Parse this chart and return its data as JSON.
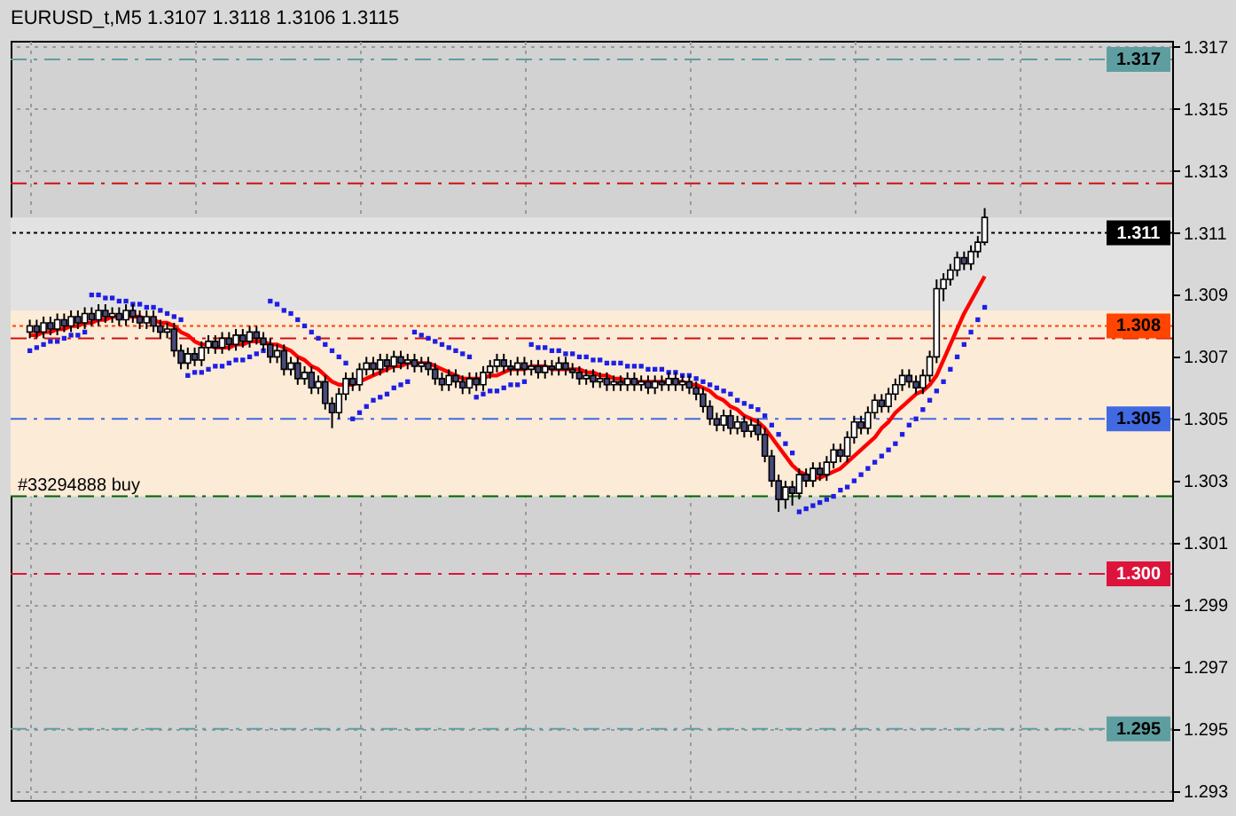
{
  "chart_data": {
    "type": "candlestick",
    "title": "EURUSD_t,M5  1.3107 1.3118 1.3106 1.3115",
    "categories": [
      null,
      null,
      null,
      null,
      null,
      null,
      null,
      null,
      null,
      null,
      null,
      null,
      null,
      null,
      null,
      null,
      null,
      null,
      null,
      null,
      null,
      null,
      null,
      null,
      null,
      null,
      null,
      null,
      null,
      null,
      null,
      null,
      null,
      null,
      null,
      null,
      null,
      null,
      null,
      null,
      null,
      null,
      null,
      null,
      null,
      null,
      null,
      null,
      null,
      null,
      null,
      null,
      null,
      null,
      null,
      null,
      null,
      null,
      null,
      null,
      null,
      null,
      null,
      null,
      null,
      null,
      null,
      null,
      null,
      null,
      null,
      null,
      null,
      null,
      null,
      null,
      null,
      null,
      null,
      null,
      null,
      null,
      null,
      null,
      null,
      null,
      null,
      null,
      null,
      null,
      null,
      null,
      null,
      null,
      null,
      null,
      null,
      null,
      null,
      null,
      null,
      null,
      null,
      null,
      null,
      null,
      null,
      null,
      null,
      null,
      null,
      null,
      null,
      null,
      null,
      null,
      null,
      null,
      null,
      null,
      null,
      null,
      null,
      null,
      null,
      null,
      null,
      null,
      null,
      null,
      null,
      null,
      null,
      null,
      null,
      null,
      null,
      null,
      null,
      null
    ],
    "ohlc": [
      [
        1.3078,
        1.3082,
        1.3076,
        1.308
      ],
      [
        1.308,
        1.3082,
        1.3076,
        1.3078
      ],
      [
        1.3078,
        1.3083,
        1.3076,
        1.3081
      ],
      [
        1.3081,
        1.3083,
        1.3077,
        1.3079
      ],
      [
        1.3079,
        1.3084,
        1.3077,
        1.3082
      ],
      [
        1.3082,
        1.3084,
        1.3078,
        1.308
      ],
      [
        1.308,
        1.3085,
        1.3078,
        1.3083
      ],
      [
        1.3083,
        1.3085,
        1.3079,
        1.3081
      ],
      [
        1.3081,
        1.3086,
        1.3079,
        1.3084
      ],
      [
        1.3084,
        1.3086,
        1.308,
        1.3082
      ],
      [
        1.3082,
        1.3087,
        1.308,
        1.3085
      ],
      [
        1.3085,
        1.3087,
        1.3081,
        1.3083
      ],
      [
        1.3083,
        1.3086,
        1.3081,
        1.3084
      ],
      [
        1.3084,
        1.3086,
        1.308,
        1.3082
      ],
      [
        1.3082,
        1.3087,
        1.308,
        1.3085
      ],
      [
        1.3085,
        1.3087,
        1.3081,
        1.3083
      ],
      [
        1.3083,
        1.3085,
        1.3079,
        1.3081
      ],
      [
        1.3081,
        1.3085,
        1.3079,
        1.3083
      ],
      [
        1.3083,
        1.3085,
        1.3078,
        1.308
      ],
      [
        1.308,
        1.3082,
        1.3076,
        1.3078
      ],
      [
        1.3078,
        1.3081,
        1.3076,
        1.3079
      ],
      [
        1.3079,
        1.3081,
        1.307,
        1.3072
      ],
      [
        1.3072,
        1.3074,
        1.3066,
        1.3068
      ],
      [
        1.3068,
        1.3073,
        1.3066,
        1.3071
      ],
      [
        1.3071,
        1.3073,
        1.3067,
        1.3069
      ],
      [
        1.3069,
        1.3075,
        1.3067,
        1.3073
      ],
      [
        1.3073,
        1.3077,
        1.3071,
        1.3075
      ],
      [
        1.3075,
        1.3077,
        1.3071,
        1.3073
      ],
      [
        1.3073,
        1.3078,
        1.3071,
        1.3076
      ],
      [
        1.3076,
        1.3078,
        1.3072,
        1.3074
      ],
      [
        1.3074,
        1.3079,
        1.3072,
        1.3077
      ],
      [
        1.3077,
        1.3079,
        1.3073,
        1.3075
      ],
      [
        1.3075,
        1.308,
        1.3073,
        1.3078
      ],
      [
        1.3078,
        1.308,
        1.3074,
        1.3076
      ],
      [
        1.3076,
        1.3078,
        1.3072,
        1.3074
      ],
      [
        1.3074,
        1.3076,
        1.3068,
        1.307
      ],
      [
        1.307,
        1.3074,
        1.3068,
        1.3072
      ],
      [
        1.3072,
        1.3074,
        1.3064,
        1.3066
      ],
      [
        1.3066,
        1.307,
        1.3064,
        1.3068
      ],
      [
        1.3068,
        1.307,
        1.3061,
        1.3063
      ],
      [
        1.3063,
        1.3067,
        1.3061,
        1.3065
      ],
      [
        1.3065,
        1.3067,
        1.3058,
        1.306
      ],
      [
        1.306,
        1.3064,
        1.3058,
        1.3062
      ],
      [
        1.3062,
        1.3064,
        1.3053,
        1.3055
      ],
      [
        1.3055,
        1.3057,
        1.3047,
        1.3052
      ],
      [
        1.3052,
        1.306,
        1.305,
        1.3058
      ],
      [
        1.3058,
        1.3065,
        1.3056,
        1.3063
      ],
      [
        1.3063,
        1.3065,
        1.3059,
        1.3061
      ],
      [
        1.3061,
        1.3068,
        1.3059,
        1.3066
      ],
      [
        1.3066,
        1.307,
        1.3064,
        1.3068
      ],
      [
        1.3068,
        1.307,
        1.3064,
        1.3066
      ],
      [
        1.3066,
        1.3071,
        1.3064,
        1.3069
      ],
      [
        1.3069,
        1.3071,
        1.3065,
        1.3067
      ],
      [
        1.3067,
        1.3072,
        1.3065,
        1.307
      ],
      [
        1.307,
        1.3072,
        1.3066,
        1.3068
      ],
      [
        1.3068,
        1.3071,
        1.3066,
        1.3069
      ],
      [
        1.3069,
        1.3071,
        1.3065,
        1.3067
      ],
      [
        1.3067,
        1.307,
        1.3065,
        1.3068
      ],
      [
        1.3068,
        1.307,
        1.3064,
        1.3066
      ],
      [
        1.3066,
        1.3068,
        1.3061,
        1.3063
      ],
      [
        1.3063,
        1.3065,
        1.3059,
        1.3061
      ],
      [
        1.3061,
        1.3066,
        1.3059,
        1.3064
      ],
      [
        1.3064,
        1.3066,
        1.306,
        1.3062
      ],
      [
        1.3062,
        1.3064,
        1.3058,
        1.306
      ],
      [
        1.306,
        1.3065,
        1.3058,
        1.3063
      ],
      [
        1.3063,
        1.3065,
        1.3059,
        1.3061
      ],
      [
        1.3061,
        1.3067,
        1.3059,
        1.3065
      ],
      [
        1.3065,
        1.3069,
        1.3063,
        1.3067
      ],
      [
        1.3067,
        1.3071,
        1.3065,
        1.3069
      ],
      [
        1.3069,
        1.3071,
        1.3065,
        1.3067
      ],
      [
        1.3067,
        1.3069,
        1.3064,
        1.3066
      ],
      [
        1.3066,
        1.307,
        1.3064,
        1.3068
      ],
      [
        1.3068,
        1.307,
        1.3064,
        1.3066
      ],
      [
        1.3066,
        1.3069,
        1.3064,
        1.3067
      ],
      [
        1.3067,
        1.3069,
        1.3063,
        1.3065
      ],
      [
        1.3065,
        1.3069,
        1.3063,
        1.3067
      ],
      [
        1.3067,
        1.3069,
        1.3064,
        1.3066
      ],
      [
        1.3066,
        1.307,
        1.3064,
        1.3068
      ],
      [
        1.3068,
        1.307,
        1.3064,
        1.3066
      ],
      [
        1.3066,
        1.3068,
        1.3063,
        1.3065
      ],
      [
        1.3065,
        1.3067,
        1.3061,
        1.3063
      ],
      [
        1.3063,
        1.3066,
        1.3061,
        1.3064
      ],
      [
        1.3064,
        1.3066,
        1.306,
        1.3062
      ],
      [
        1.3062,
        1.3065,
        1.306,
        1.3063
      ],
      [
        1.3063,
        1.3065,
        1.3059,
        1.3061
      ],
      [
        1.3061,
        1.3064,
        1.3059,
        1.3062
      ],
      [
        1.3062,
        1.3064,
        1.3059,
        1.3061
      ],
      [
        1.3061,
        1.3065,
        1.3059,
        1.3063
      ],
      [
        1.3063,
        1.3065,
        1.3059,
        1.3061
      ],
      [
        1.3061,
        1.3064,
        1.3059,
        1.3062
      ],
      [
        1.3062,
        1.3064,
        1.3058,
        1.306
      ],
      [
        1.306,
        1.3064,
        1.3058,
        1.3062
      ],
      [
        1.3062,
        1.3064,
        1.3059,
        1.3061
      ],
      [
        1.3061,
        1.3065,
        1.3059,
        1.3063
      ],
      [
        1.3063,
        1.3065,
        1.3059,
        1.3061
      ],
      [
        1.3061,
        1.3064,
        1.3059,
        1.3062
      ],
      [
        1.3062,
        1.3064,
        1.3058,
        1.306
      ],
      [
        1.306,
        1.3062,
        1.3056,
        1.3058
      ],
      [
        1.3058,
        1.306,
        1.3052,
        1.3054
      ],
      [
        1.3054,
        1.3056,
        1.3048,
        1.305
      ],
      [
        1.305,
        1.3052,
        1.3046,
        1.3048
      ],
      [
        1.3048,
        1.3053,
        1.3046,
        1.3051
      ],
      [
        1.3051,
        1.3053,
        1.3045,
        1.3047
      ],
      [
        1.3047,
        1.3051,
        1.3045,
        1.3049
      ],
      [
        1.3049,
        1.3051,
        1.3044,
        1.3046
      ],
      [
        1.3046,
        1.305,
        1.3044,
        1.3048
      ],
      [
        1.3048,
        1.305,
        1.3043,
        1.3045
      ],
      [
        1.3045,
        1.3047,
        1.3036,
        1.3038
      ],
      [
        1.3038,
        1.304,
        1.3028,
        1.303
      ],
      [
        1.303,
        1.3032,
        1.302,
        1.3024
      ],
      [
        1.3024,
        1.303,
        1.3021,
        1.3028
      ],
      [
        1.3028,
        1.303,
        1.3022,
        1.3026
      ],
      [
        1.3026,
        1.3034,
        1.3024,
        1.3032
      ],
      [
        1.3032,
        1.3034,
        1.3028,
        1.303
      ],
      [
        1.303,
        1.3036,
        1.3028,
        1.3034
      ],
      [
        1.3034,
        1.3036,
        1.303,
        1.3032
      ],
      [
        1.3032,
        1.3038,
        1.303,
        1.3036
      ],
      [
        1.3036,
        1.3042,
        1.3034,
        1.304
      ],
      [
        1.304,
        1.3042,
        1.3036,
        1.3038
      ],
      [
        1.3038,
        1.3046,
        1.3036,
        1.3044
      ],
      [
        1.3044,
        1.3051,
        1.3042,
        1.3049
      ],
      [
        1.3049,
        1.3051,
        1.3045,
        1.3047
      ],
      [
        1.3047,
        1.3054,
        1.3045,
        1.3052
      ],
      [
        1.3052,
        1.3058,
        1.305,
        1.3056
      ],
      [
        1.3056,
        1.3058,
        1.3052,
        1.3054
      ],
      [
        1.3054,
        1.306,
        1.3052,
        1.3058
      ],
      [
        1.3058,
        1.3063,
        1.3056,
        1.3061
      ],
      [
        1.3061,
        1.3066,
        1.3059,
        1.3064
      ],
      [
        1.3064,
        1.3066,
        1.306,
        1.3062
      ],
      [
        1.3062,
        1.3064,
        1.3058,
        1.306
      ],
      [
        1.306,
        1.3066,
        1.3058,
        1.3064
      ],
      [
        1.3064,
        1.3072,
        1.3062,
        1.307
      ],
      [
        1.307,
        1.3095,
        1.3068,
        1.3092
      ],
      [
        1.3092,
        1.3097,
        1.3088,
        1.3095
      ],
      [
        1.3095,
        1.31,
        1.3093,
        1.3098
      ],
      [
        1.3098,
        1.3104,
        1.3096,
        1.3102
      ],
      [
        1.3102,
        1.3104,
        1.3098,
        1.31
      ],
      [
        1.31,
        1.3106,
        1.3098,
        1.3104
      ],
      [
        1.3104,
        1.3109,
        1.3102,
        1.3107
      ],
      [
        1.3107,
        1.3118,
        1.3106,
        1.3115
      ]
    ],
    "series": [
      {
        "type": "line",
        "color": "#ff0000",
        "values": [
          1.3077,
          1.3077,
          1.3078,
          1.3078,
          1.3079,
          1.3079,
          1.308,
          1.308,
          1.3081,
          1.3081,
          1.3082,
          1.3082,
          1.3083,
          1.3083,
          1.3083,
          1.3083,
          1.3083,
          1.3082,
          1.3082,
          1.3081,
          1.3081,
          1.308,
          1.3078,
          1.3077,
          1.3075,
          1.3074,
          1.3074,
          1.3073,
          1.3073,
          1.3073,
          1.3074,
          1.3074,
          1.3075,
          1.3075,
          1.3075,
          1.3074,
          1.3074,
          1.3073,
          1.3072,
          1.307,
          1.3069,
          1.3067,
          1.3066,
          1.3064,
          1.3062,
          1.3061,
          1.3061,
          1.3061,
          1.3062,
          1.3063,
          1.3064,
          1.3065,
          1.3066,
          1.3067,
          1.3067,
          1.3068,
          1.3068,
          1.3068,
          1.3068,
          1.3067,
          1.3066,
          1.3065,
          1.3064,
          1.3063,
          1.3063,
          1.3063,
          1.3063,
          1.3064,
          1.3064,
          1.3065,
          1.3066,
          1.3066,
          1.3066,
          1.3067,
          1.3067,
          1.3067,
          1.3066,
          1.3066,
          1.3066,
          1.3066,
          1.3066,
          1.3065,
          1.3065,
          1.3064,
          1.3064,
          1.3063,
          1.3063,
          1.3062,
          1.3062,
          1.3062,
          1.3062,
          1.3062,
          1.3062,
          1.3062,
          1.3062,
          1.3062,
          1.3061,
          1.3061,
          1.306,
          1.3059,
          1.3057,
          1.3056,
          1.3054,
          1.3053,
          1.3051,
          1.305,
          1.3049,
          1.3047,
          1.3044,
          1.3041,
          1.3038,
          1.3035,
          1.3033,
          1.3032,
          1.3031,
          1.3031,
          1.3032,
          1.3033,
          1.3034,
          1.3036,
          1.3038,
          1.304,
          1.3042,
          1.3044,
          1.3047,
          1.3049,
          1.3052,
          1.3054,
          1.3056,
          1.3058,
          1.3059,
          1.3061,
          1.3064,
          1.3069,
          1.3074,
          1.3079,
          1.3084,
          1.3088,
          1.3092,
          1.3096
        ]
      },
      {
        "type": "scatter",
        "color": "#1e1ee6",
        "marker": "square",
        "values": [
          1.3072,
          1.3073,
          1.3074,
          1.3075,
          1.3075,
          1.3076,
          1.3077,
          1.3077,
          1.3078,
          1.309,
          1.309,
          1.3089,
          1.3089,
          1.3088,
          1.3088,
          1.3087,
          1.3087,
          1.3086,
          1.3086,
          1.3085,
          1.3084,
          1.3083,
          1.3082,
          1.3064,
          1.3065,
          1.3065,
          1.3066,
          1.3067,
          1.3067,
          1.3068,
          1.3069,
          1.3069,
          1.307,
          1.3071,
          1.3072,
          1.3088,
          1.3087,
          1.3085,
          1.3084,
          1.3082,
          1.308,
          1.3078,
          1.3076,
          1.3074,
          1.3072,
          1.307,
          1.3068,
          1.305,
          1.3052,
          1.3054,
          1.3056,
          1.3057,
          1.3058,
          1.306,
          1.3061,
          1.3062,
          1.3078,
          1.3077,
          1.3076,
          1.3075,
          1.3074,
          1.3073,
          1.3072,
          1.3071,
          1.307,
          1.3057,
          1.3058,
          1.3059,
          1.3059,
          1.306,
          1.3061,
          1.3061,
          1.3062,
          1.3074,
          1.3073,
          1.3073,
          1.3072,
          1.3072,
          1.3071,
          1.3071,
          1.307,
          1.307,
          1.3069,
          1.3069,
          1.3068,
          1.3068,
          1.3068,
          1.3067,
          1.3067,
          1.3067,
          1.3066,
          1.3066,
          1.3066,
          1.3065,
          1.3065,
          1.3064,
          1.3064,
          1.3063,
          1.3062,
          1.3061,
          1.306,
          1.3059,
          1.3058,
          1.3056,
          1.3055,
          1.3054,
          1.3053,
          1.3051,
          1.3048,
          1.3045,
          1.3042,
          1.3039,
          1.302,
          1.3021,
          1.3022,
          1.3023,
          1.3024,
          1.3025,
          1.3027,
          1.3028,
          1.303,
          1.3032,
          1.3034,
          1.3036,
          1.3038,
          1.304,
          1.3042,
          1.3045,
          1.3048,
          1.305,
          1.3053,
          1.3056,
          1.3059,
          1.3062,
          1.3066,
          1.307,
          1.3074,
          1.3078,
          1.3082,
          1.3086
        ]
      }
    ],
    "ylim": [
      1.2927,
      1.3172
    ],
    "yticks": [
      1.293,
      1.295,
      1.297,
      1.299,
      1.301,
      1.303,
      1.305,
      1.307,
      1.309,
      1.311,
      1.313,
      1.315,
      1.317
    ],
    "grid": true,
    "tick_labels": "y",
    "bands": [
      {
        "axis": "y",
        "from": 1.3025,
        "to": 1.3115,
        "color": "#e2e2e2"
      },
      {
        "axis": "y",
        "from": 1.3025,
        "to": 1.3085,
        "color": "#fbebd7"
      }
    ],
    "ref_lines": [
      {
        "axis": "y",
        "value": 1.3166,
        "label": "1.317",
        "color": "#5f9ea0",
        "line_style": "dashed"
      },
      {
        "axis": "y",
        "value": 1.3126,
        "color": "#d01010",
        "line_style": "dashed"
      },
      {
        "axis": "y",
        "value": 1.311,
        "label": "1.311",
        "color": "#000000",
        "line_style": "dotted"
      },
      {
        "axis": "y",
        "value": 1.308,
        "label": "1.308",
        "color": "#ff4500",
        "line_style": "dotted"
      },
      {
        "axis": "y",
        "value": 1.3076,
        "color": "#d01010",
        "line_style": "dashed"
      },
      {
        "axis": "y",
        "value": 1.305,
        "label": "1.305",
        "color": "#4169e1",
        "line_style": "dashed"
      },
      {
        "axis": "y",
        "value": 1.3025,
        "color": "#006400",
        "line_style": "dashed"
      },
      {
        "axis": "y",
        "value": 1.3,
        "label": "1.300",
        "color": "#dc143c",
        "line_style": "dashed"
      },
      {
        "axis": "y",
        "value": 1.295,
        "label": "1.295",
        "color": "#5f9ea0",
        "line_style": "dashed"
      }
    ],
    "annotations": [
      "#33294888 buy"
    ]
  }
}
